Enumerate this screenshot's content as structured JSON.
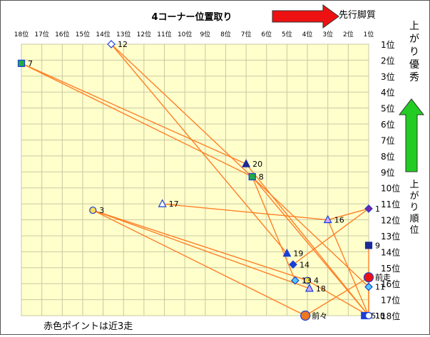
{
  "chart_data": {
    "type": "scatter",
    "title": "4コーナー位置取り",
    "x_axis": {
      "label": "4コーナー位置取り",
      "ticks": [
        "18位",
        "17位",
        "16位",
        "15位",
        "14位",
        "13位",
        "12位",
        "11位",
        "10位",
        "9位",
        "8位",
        "7位",
        "6位",
        "5位",
        "4位",
        "3位",
        "2位",
        "1位"
      ],
      "range": [
        18,
        1
      ]
    },
    "y_axis": {
      "label": "上がり順位",
      "ticks": [
        "1位",
        "2位",
        "3位",
        "4位",
        "5位",
        "6位",
        "7位",
        "8位",
        "9位",
        "10位",
        "11位",
        "12位",
        "13位",
        "14位",
        "15位",
        "16位",
        "17位",
        "18位"
      ],
      "range": [
        1,
        18
      ]
    },
    "arrows": {
      "right_label": "先行脚質",
      "up_label": "上がり優秀",
      "right_color": "#ee1111",
      "up_color": "#22cc22"
    },
    "note": "赤色ポイントは近3走",
    "colors": {
      "plot_bg": "#ffffcc",
      "grid": "#c8c8a0",
      "line": "#ff7f27"
    },
    "points": [
      {
        "label": "12",
        "x": 13.6,
        "y": 1.0,
        "shape": "diamond",
        "fill": "#ffffff",
        "stroke": "#1a3fd6"
      },
      {
        "label": "7",
        "x": 18.0,
        "y": 2.2,
        "shape": "square",
        "fill": "#22aa44",
        "stroke": "#1a3fd6"
      },
      {
        "label": "20",
        "x": 7.0,
        "y": 8.5,
        "shape": "triangle",
        "fill": "#1a2a99",
        "stroke": "#1a2a99"
      },
      {
        "label": "8",
        "x": 6.7,
        "y": 9.3,
        "shape": "square",
        "fill": "#22aa44",
        "stroke": "#1a3fd6"
      },
      {
        "label": "3",
        "x": 14.5,
        "y": 11.4,
        "shape": "circle",
        "fill": "#ffdd55",
        "stroke": "#1a3fd6"
      },
      {
        "label": "17",
        "x": 11.1,
        "y": 11.0,
        "shape": "triangle",
        "fill": "#ffffff",
        "stroke": "#1a3fd6"
      },
      {
        "label": "1",
        "x": 1.0,
        "y": 11.3,
        "shape": "diamond",
        "fill": "#7722aa",
        "stroke": "#1a3fd6"
      },
      {
        "label": "16",
        "x": 3.0,
        "y": 12.0,
        "shape": "triangle",
        "fill": "#ccaaff",
        "stroke": "#1a3fd6"
      },
      {
        "label": "9",
        "x": 1.0,
        "y": 13.6,
        "shape": "square",
        "fill": "#1a2a99",
        "stroke": "#1a2a99"
      },
      {
        "label": "19",
        "x": 5.0,
        "y": 14.1,
        "shape": "triangle",
        "fill": "#1a3fd6",
        "stroke": "#1a3fd6"
      },
      {
        "label": "14",
        "x": 4.7,
        "y": 14.8,
        "shape": "diamond",
        "fill": "#1a3fd6",
        "stroke": "#1a3fd6"
      },
      {
        "label": "前走",
        "x": 1.0,
        "y": 15.6,
        "shape": "circle",
        "fill": "#ee1111",
        "stroke": "#1a3fd6",
        "recent": true
      },
      {
        "label": "4",
        "x": 4.0,
        "y": 15.8,
        "shape": "circle",
        "fill": "#ffdd55",
        "stroke": "#1a3fd6"
      },
      {
        "label": "13",
        "x": 4.6,
        "y": 15.8,
        "shape": "diamond",
        "fill": "#55ccff",
        "stroke": "#1a3fd6"
      },
      {
        "label": "11",
        "x": 1.0,
        "y": 16.2,
        "shape": "diamond",
        "fill": "#55ccff",
        "stroke": "#1a3fd6"
      },
      {
        "label": "18",
        "x": 3.9,
        "y": 16.3,
        "shape": "triangle",
        "fill": "#ccaaff",
        "stroke": "#1a3fd6"
      },
      {
        "label": "前々",
        "x": 4.1,
        "y": 18.0,
        "shape": "circle",
        "fill": "#ee7722",
        "stroke": "#1a3fd6",
        "recent": true
      },
      {
        "label": "15",
        "x": 1.0,
        "y": 18.0,
        "shape": "circle",
        "fill": "#88cc66",
        "stroke": "#1a3fd6"
      },
      {
        "label": "5",
        "x": 1.2,
        "y": 18.0,
        "shape": "square",
        "fill": "#1a3fd6",
        "stroke": "#1a3fd6"
      },
      {
        "label": "10",
        "x": 1.0,
        "y": 18.0,
        "shape": "circle",
        "fill": "#ffffff",
        "stroke": "#1a3fd6"
      }
    ],
    "lines": [
      [
        [
          13.6,
          1.0
        ],
        [
          1.0,
          16.2
        ]
      ],
      [
        [
          13.6,
          1.0
        ],
        [
          5.0,
          14.1
        ]
      ],
      [
        [
          18.0,
          2.2
        ],
        [
          7.0,
          8.5
        ]
      ],
      [
        [
          18.0,
          2.2
        ],
        [
          6.7,
          9.3
        ]
      ],
      [
        [
          7.0,
          8.5
        ],
        [
          1.0,
          18.0
        ]
      ],
      [
        [
          6.7,
          9.3
        ],
        [
          4.6,
          15.8
        ]
      ],
      [
        [
          6.7,
          9.3
        ],
        [
          1.0,
          18.0
        ]
      ],
      [
        [
          14.5,
          11.4
        ],
        [
          4.0,
          15.8
        ]
      ],
      [
        [
          14.5,
          11.4
        ],
        [
          3.9,
          16.3
        ]
      ],
      [
        [
          14.5,
          11.4
        ],
        [
          4.1,
          18.0
        ]
      ],
      [
        [
          11.1,
          11.0
        ],
        [
          3.0,
          12.0
        ]
      ],
      [
        [
          3.0,
          12.0
        ],
        [
          1.0,
          18.0
        ]
      ],
      [
        [
          1.0,
          11.3
        ],
        [
          4.7,
          14.8
        ]
      ],
      [
        [
          1.0,
          11.3
        ],
        [
          3.0,
          12.0
        ]
      ],
      [
        [
          1.0,
          13.6
        ],
        [
          1.0,
          18.0
        ]
      ],
      [
        [
          1.0,
          15.6
        ],
        [
          1.0,
          18.0
        ]
      ],
      [
        [
          4.0,
          15.8
        ],
        [
          1.0,
          18.0
        ]
      ],
      [
        [
          4.1,
          18.0
        ],
        [
          1.0,
          15.6
        ]
      ]
    ]
  }
}
